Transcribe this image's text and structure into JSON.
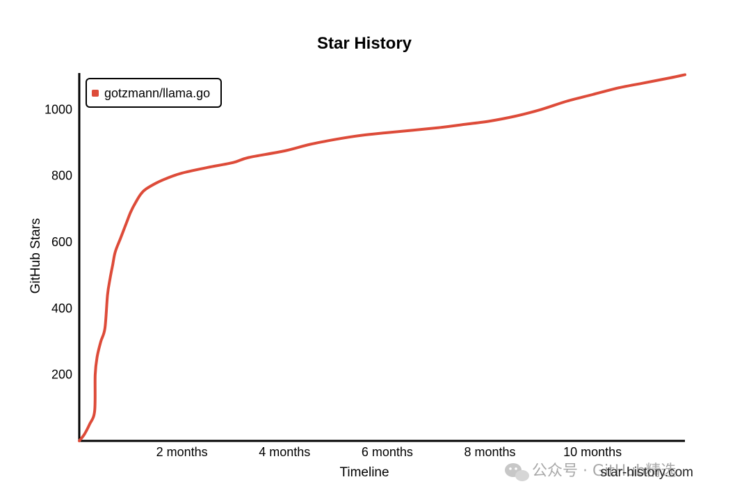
{
  "chart_data": {
    "type": "line",
    "title": "Star History",
    "xlabel": "Timeline",
    "ylabel": "GitHub Stars",
    "x_unit": "months",
    "xlim": [
      0,
      11.8
    ],
    "ylim": [
      0,
      1110
    ],
    "x_ticks": [
      {
        "value": 2,
        "label": "2 months"
      },
      {
        "value": 4,
        "label": "4 months"
      },
      {
        "value": 6,
        "label": "6 months"
      },
      {
        "value": 8,
        "label": "8 months"
      },
      {
        "value": 10,
        "label": "10 months"
      }
    ],
    "y_ticks": [
      {
        "value": 200,
        "label": "200"
      },
      {
        "value": 400,
        "label": "400"
      },
      {
        "value": 600,
        "label": "600"
      },
      {
        "value": 800,
        "label": "800"
      },
      {
        "value": 1000,
        "label": "1000"
      }
    ],
    "grid": false,
    "legend": {
      "position": "top-left",
      "entries": [
        "gotzmann/llama.go"
      ]
    },
    "series": [
      {
        "name": "gotzmann/llama.go",
        "color": "#dd4b39",
        "x": [
          0,
          0.1,
          0.2,
          0.3,
          0.31,
          0.35,
          0.42,
          0.5,
          0.55,
          0.6,
          0.65,
          0.7,
          0.8,
          0.9,
          1.0,
          1.1,
          1.2,
          1.3,
          1.5,
          1.7,
          2.0,
          2.5,
          3.0,
          3.3,
          4.0,
          4.5,
          5.0,
          5.5,
          6.0,
          7.0,
          7.5,
          8.0,
          8.5,
          9.0,
          9.5,
          10.0,
          10.5,
          11.0,
          11.5,
          11.8
        ],
        "y": [
          0,
          20,
          50,
          90,
          200,
          255,
          300,
          340,
          440,
          490,
          530,
          570,
          610,
          650,
          690,
          720,
          745,
          760,
          778,
          792,
          808,
          825,
          840,
          855,
          875,
          895,
          910,
          922,
          930,
          945,
          955,
          965,
          980,
          1000,
          1025,
          1045,
          1065,
          1080,
          1095,
          1105
        ]
      }
    ]
  },
  "credit": "star-history.com",
  "watermark": "公众号 · GitHub精选"
}
